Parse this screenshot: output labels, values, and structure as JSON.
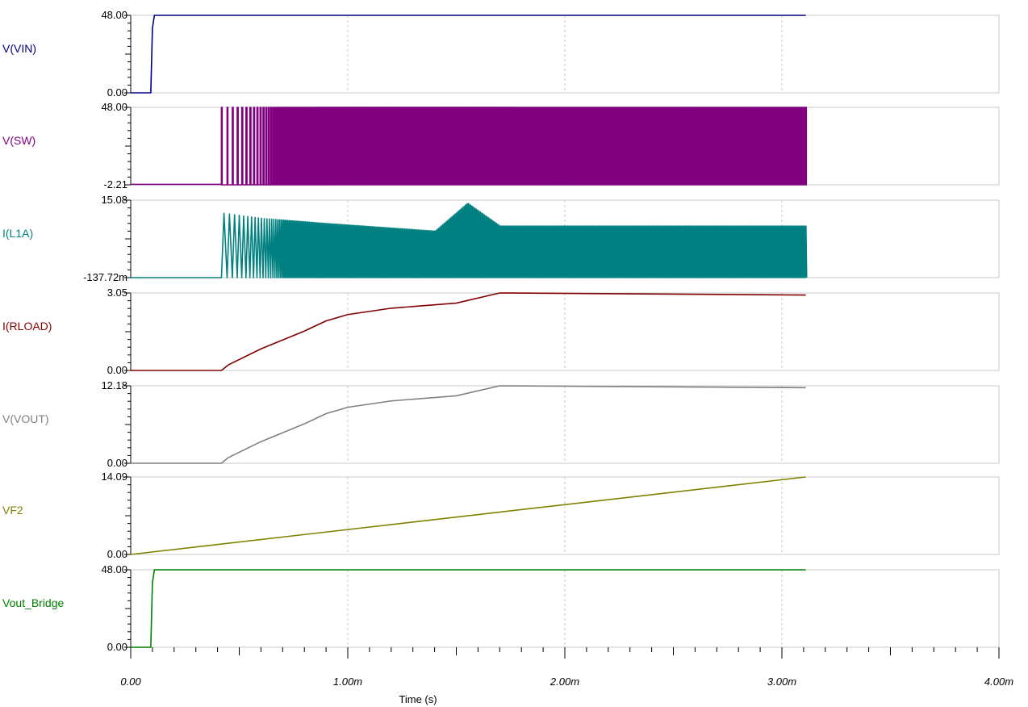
{
  "chart_data": {
    "type": "line",
    "x_label": "Time (s)",
    "x_range": [
      0,
      0.004
    ],
    "x_tick_values": [
      0,
      0.001,
      0.002,
      0.003,
      0.004
    ],
    "x_tick_labels": [
      "0.00",
      "1.00m",
      "2.00m",
      "3.00m",
      "4.00m"
    ],
    "grid": true,
    "panels": [
      {
        "name": "V(VIN)",
        "color": "#000080",
        "ylim": [
          0,
          48
        ],
        "y_tick_labels": [
          "0.00",
          "48.00"
        ],
        "x": [
          0,
          9.25e-05,
          0.0001,
          0.000109,
          0.00311
        ],
        "y": [
          0,
          0,
          40,
          48,
          48
        ]
      },
      {
        "name": "V(SW)",
        "color": "#800080",
        "ylim": [
          -2.21,
          48
        ],
        "y_tick_labels": [
          "-2.21",
          "48.00"
        ],
        "pattern": "pwm-switching",
        "x": [
          0,
          0.000418,
          0.00311
        ],
        "y": [
          0,
          48,
          48
        ],
        "x_start_switching": 0.000418,
        "low": -2.21,
        "high": 48
      },
      {
        "name": "I(L1A)",
        "color": "#008080",
        "ylim": [
          -0.13772,
          15.08
        ],
        "y_tick_labels": [
          "-137.72m",
          "15.08"
        ],
        "pattern": "inductor-ripple",
        "x": [
          0,
          0.000418,
          0.0006,
          0.0009,
          0.0014,
          0.00155,
          0.0017,
          0.00311
        ],
        "y": [
          0,
          12.5,
          11.5,
          10.5,
          9.0,
          14.5,
          10.0,
          10.0
        ],
        "low": -0.13772
      },
      {
        "name": "I(RLOAD)",
        "color": "#800000",
        "ylim": [
          0,
          3.05
        ],
        "y_tick_labels": [
          "0.00",
          "3.05"
        ],
        "x": [
          0,
          0.000418,
          0.00045,
          0.0006,
          0.0008,
          0.0009,
          0.001,
          0.0012,
          0.0015,
          0.0017,
          0.00311
        ],
        "y": [
          0,
          0,
          0.22,
          0.85,
          1.55,
          1.95,
          2.2,
          2.45,
          2.65,
          3.05,
          2.97
        ]
      },
      {
        "name": "V(VOUT)",
        "color": "#808080",
        "ylim": [
          0,
          12.18
        ],
        "y_tick_labels": [
          "0.00",
          "12.18"
        ],
        "x": [
          0,
          0.000418,
          0.00045,
          0.0006,
          0.0008,
          0.0009,
          0.001,
          0.0012,
          0.0015,
          0.0017,
          0.00311
        ],
        "y": [
          0,
          0,
          0.9,
          3.4,
          6.2,
          7.8,
          8.8,
          9.8,
          10.6,
          12.18,
          11.88
        ]
      },
      {
        "name": "VF2",
        "color": "#808000",
        "ylim": [
          0,
          14.09
        ],
        "y_tick_labels": [
          "0.00",
          "14.09"
        ],
        "x": [
          0,
          0.00311
        ],
        "y": [
          0,
          14.09
        ]
      },
      {
        "name": "Vout_Bridge",
        "color": "#008000",
        "ylim": [
          0,
          48
        ],
        "y_tick_labels": [
          "0.00",
          "48.00"
        ],
        "x": [
          0,
          9.25e-05,
          0.0001,
          0.000109,
          0.00311
        ],
        "y": [
          0,
          0,
          40,
          48,
          48
        ]
      }
    ]
  }
}
